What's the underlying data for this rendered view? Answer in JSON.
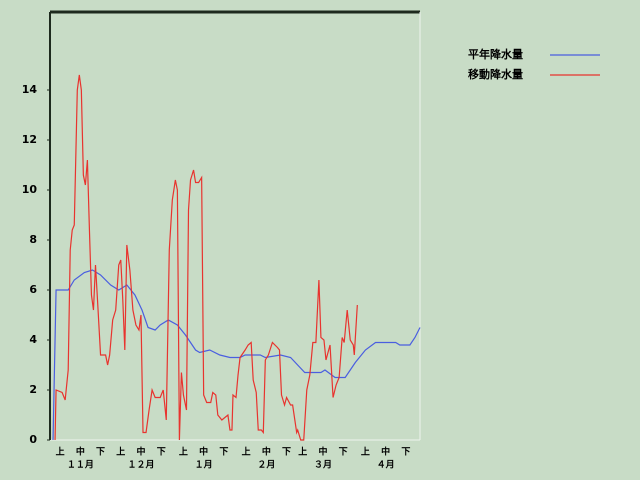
{
  "chart_data": {
    "type": "line",
    "xlim": [
      0,
      183
    ],
    "ylim": [
      0,
      17.12
    ],
    "yticks": [
      0,
      2,
      4,
      6,
      8,
      10,
      12,
      14
    ],
    "xticks": [
      {
        "value": 5,
        "label": "上"
      },
      {
        "value": 15,
        "label": "中"
      },
      {
        "value": 25,
        "label": "下"
      },
      {
        "value": 35,
        "label": "上"
      },
      {
        "value": 45,
        "label": "中"
      },
      {
        "value": 55,
        "label": "下"
      },
      {
        "value": 66,
        "label": "上"
      },
      {
        "value": 76,
        "label": "中"
      },
      {
        "value": 86,
        "label": "下"
      },
      {
        "value": 97,
        "label": "上"
      },
      {
        "value": 107,
        "label": "中"
      },
      {
        "value": 117,
        "label": "下"
      },
      {
        "value": 125,
        "label": "上"
      },
      {
        "value": 135,
        "label": "中"
      },
      {
        "value": 145,
        "label": "下"
      },
      {
        "value": 156,
        "label": "上"
      },
      {
        "value": 166,
        "label": "中"
      },
      {
        "value": 176,
        "label": "下"
      }
    ],
    "x_groups": [
      {
        "value": 15,
        "label": "１１月"
      },
      {
        "value": 45,
        "label": "１２月"
      },
      {
        "value": 76,
        "label": "１月"
      },
      {
        "value": 107,
        "label": "２月"
      },
      {
        "value": 135,
        "label": "３月"
      },
      {
        "value": 166,
        "label": "４月"
      }
    ],
    "grid": false,
    "legend": "top-right",
    "series": [
      {
        "name": "平年降水量",
        "color": "#4a5ee0",
        "x": [
          1.5,
          3,
          9,
          12,
          17,
          21,
          25,
          30,
          34,
          38,
          42,
          45.5,
          48.5,
          52,
          54.5,
          58.5,
          63,
          67,
          72,
          74,
          79,
          84,
          89,
          94,
          96.5,
          104,
          106.5,
          114,
          119,
          126,
          134,
          136,
          141,
          146,
          151,
          156,
          161,
          171,
          173,
          178,
          180.5,
          183
        ],
        "values": [
          0,
          6,
          6,
          6.4,
          6.7,
          6.8,
          6.6,
          6.2,
          6.0,
          6.2,
          5.8,
          5.2,
          4.5,
          4.4,
          4.6,
          4.8,
          4.6,
          4.2,
          3.6,
          3.5,
          3.6,
          3.4,
          3.3,
          3.3,
          3.4,
          3.4,
          3.3,
          3.4,
          3.3,
          2.7,
          2.7,
          2.8,
          2.5,
          2.5,
          3.1,
          3.6,
          3.9,
          3.9,
          3.8,
          3.8,
          4.1,
          4.5
        ]
      },
      {
        "name": "移動降水量",
        "color": "#e8332e",
        "x": [
          2.5,
          3,
          6,
          7.5,
          9,
          10,
          11,
          12,
          13.5,
          14.5,
          15.5,
          16.5,
          17.5,
          18.5,
          19.5,
          20.5,
          21.5,
          22.5,
          23.5,
          25,
          27.5,
          28.5,
          29.5,
          31,
          32.5,
          34,
          35,
          36,
          37,
          38,
          39.5,
          41,
          42.5,
          44,
          45,
          46,
          47.5,
          49,
          50.5,
          52,
          54.5,
          56,
          57.5,
          59,
          60.5,
          62,
          63,
          64,
          65,
          66,
          67.5,
          68.5,
          69.5,
          71,
          72,
          73.5,
          75,
          76,
          77.5,
          79.5,
          80.5,
          82,
          83,
          85,
          88,
          89,
          90,
          90.5,
          92,
          93,
          94,
          96.5,
          98,
          99.5,
          100.5,
          102,
          103,
          104.5,
          105.5,
          106.5,
          108,
          110,
          112.5,
          113.5,
          114.5,
          116,
          117,
          119,
          120,
          122,
          122.5,
          124,
          125.5,
          127,
          128.5,
          130,
          131.5,
          133,
          134,
          135.5,
          136.5,
          138.5,
          140,
          141.5,
          143,
          144.5,
          145.5,
          147,
          148.5,
          150,
          150.5,
          152
        ],
        "values": [
          0,
          2.0,
          1.9,
          1.6,
          2.8,
          7.6,
          8.4,
          8.6,
          14,
          14.6,
          14.0,
          10.6,
          10.2,
          11.2,
          8.4,
          5.8,
          5.2,
          7.0,
          5.6,
          3.4,
          3.4,
          3.0,
          3.4,
          4.8,
          5.2,
          7.0,
          7.2,
          5.6,
          3.6,
          7.8,
          6.8,
          5.2,
          4.6,
          4.4,
          5.0,
          0.3,
          0.3,
          1.2,
          2.0,
          1.7,
          1.7,
          2.0,
          0.8,
          7.6,
          9.6,
          10.4,
          10.0,
          0,
          2.7,
          1.8,
          1.2,
          9.2,
          10.4,
          10.8,
          10.3,
          10.3,
          10.5,
          1.8,
          1.5,
          1.5,
          1.9,
          1.8,
          1.0,
          0.8,
          1.0,
          0.4,
          0.4,
          1.8,
          1.7,
          2.6,
          3.3,
          3.6,
          3.8,
          3.9,
          2.4,
          1.9,
          0.4,
          0.4,
          0.3,
          3.2,
          3.4,
          3.9,
          3.7,
          3.6,
          1.8,
          1.4,
          1.7,
          1.4,
          1.4,
          0.3,
          0.4,
          0,
          0,
          2.0,
          2.6,
          3.9,
          3.9,
          6.4,
          4.1,
          4.0,
          3.2,
          3.8,
          1.7,
          2.2,
          2.5,
          4.1,
          3.9,
          5.2,
          4.0,
          3.8,
          3.4,
          5.4
        ]
      }
    ]
  }
}
